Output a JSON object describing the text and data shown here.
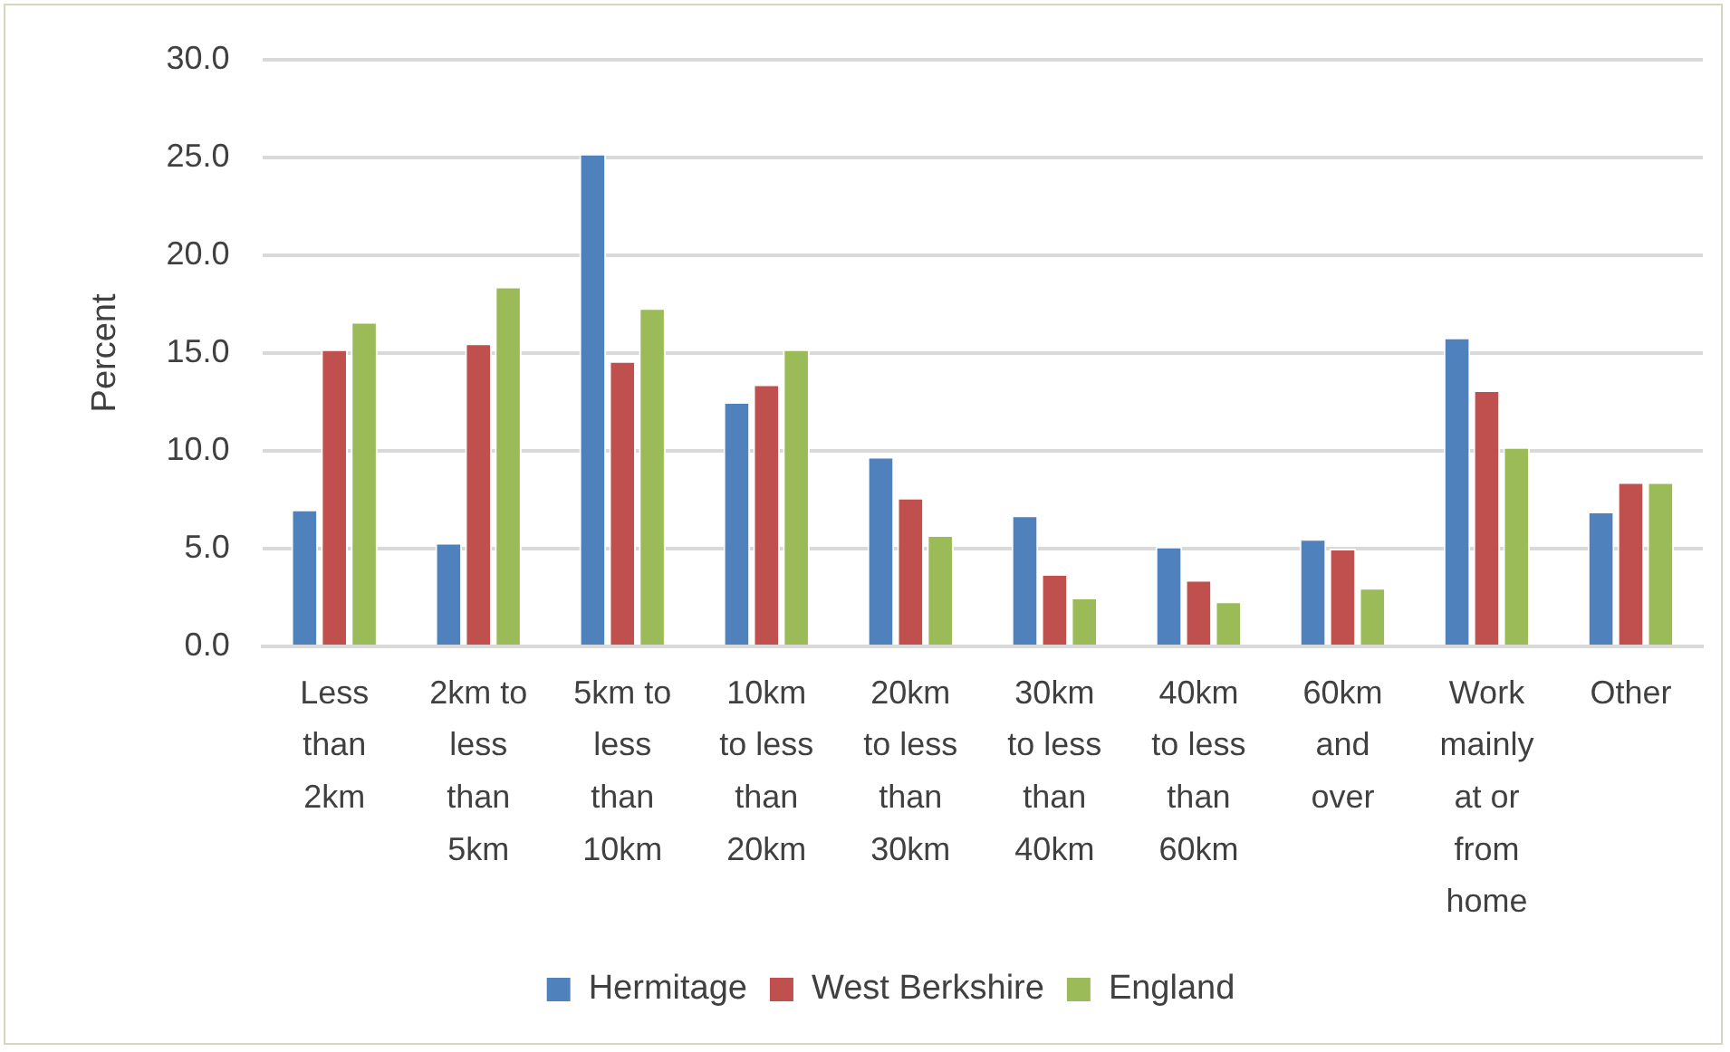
{
  "chart_data": {
    "type": "bar",
    "ylabel": "Percent",
    "categories": [
      "Less than 2km",
      "2km to less than 5km",
      "5km to less than 10km",
      "10km to less than 20km",
      "20km to less than 30km",
      "30km to less than 40km",
      "40km to less than 60km",
      "60km and over",
      "Work mainly at or from home",
      "Other"
    ],
    "series": [
      {
        "name": "Hermitage",
        "color": "#4f81bd",
        "values": [
          7.0,
          5.3,
          25.2,
          12.5,
          9.7,
          6.7,
          5.1,
          5.5,
          15.8,
          6.9
        ]
      },
      {
        "name": "West Berkshire",
        "color": "#c0504d",
        "values": [
          15.2,
          15.5,
          14.6,
          13.4,
          7.6,
          3.7,
          3.4,
          5.0,
          13.1,
          8.4
        ]
      },
      {
        "name": "England",
        "color": "#9bbb59",
        "values": [
          16.6,
          18.4,
          17.3,
          15.2,
          5.7,
          2.5,
          2.3,
          3.0,
          10.2,
          8.4
        ]
      }
    ],
    "ylim": [
      0,
      30
    ],
    "yticks": [
      {
        "value": 0,
        "label": "0.0"
      },
      {
        "value": 5,
        "label": "5.0"
      },
      {
        "value": 10,
        "label": "10.0"
      },
      {
        "value": 15,
        "label": "15.0"
      },
      {
        "value": 20,
        "label": "20.0"
      },
      {
        "value": 25,
        "label": "25.0"
      },
      {
        "value": 30,
        "label": "30.0"
      }
    ],
    "grid": "y",
    "legend": "bottom"
  }
}
